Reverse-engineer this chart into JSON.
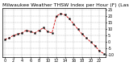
{
  "title": "Milwaukee Weather THSW Index per Hour (F) (Last 24 Hours)",
  "hours": [
    0,
    1,
    2,
    3,
    4,
    5,
    6,
    7,
    8,
    9,
    10,
    11,
    12,
    13,
    14,
    15,
    16,
    17,
    18,
    19,
    20,
    21,
    22,
    23
  ],
  "values": [
    2,
    3,
    5,
    6,
    7,
    9,
    8,
    7,
    9,
    11,
    8,
    7,
    20,
    22,
    21,
    18,
    14,
    10,
    6,
    3,
    0,
    -3,
    -7,
    -9
  ],
  "line_color": "#cc0000",
  "marker_color": "#000000",
  "bg_color": "#ffffff",
  "grid_color": "#888888",
  "ylim": [
    -12,
    26
  ],
  "yticks": [
    25,
    20,
    15,
    10,
    5,
    0,
    -5,
    -10
  ],
  "xlim": [
    -0.5,
    23.5
  ],
  "title_fontsize": 4.5,
  "tick_fontsize": 3.5
}
